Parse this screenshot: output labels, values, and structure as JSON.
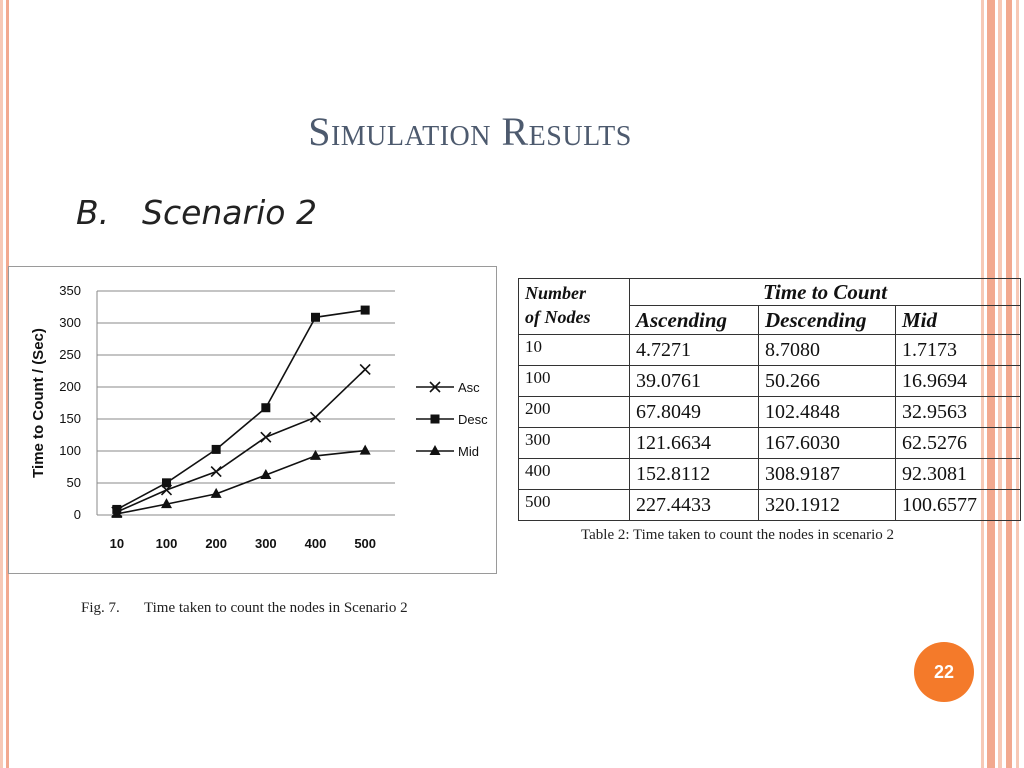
{
  "slide": {
    "title": "Simulation Results",
    "subtitle_num": "B.",
    "subtitle_text": "Scenario 2",
    "figure_caption_num": "Fig. 7.",
    "figure_caption_text": "Time taken to count the nodes in Scenario 2",
    "table_caption": "Table 2: Time taken to count the nodes in scenario 2",
    "page_number": "22"
  },
  "colors": {
    "accent": "#f47a2a",
    "title": "#4d5a6e",
    "stripe_light": "#f7c9b6",
    "stripe_dark": "#f2a98f"
  },
  "chart_data": {
    "type": "line",
    "title": "",
    "xlabel": "",
    "ylabel": "Time to Count / (Sec)",
    "categories": [
      "10",
      "100",
      "200",
      "300",
      "400",
      "500"
    ],
    "ylim": [
      0,
      350
    ],
    "yticks": [
      0,
      50,
      100,
      150,
      200,
      250,
      300,
      350
    ],
    "grid": true,
    "legend_position": "right",
    "series": [
      {
        "name": "Asc",
        "marker": "x",
        "values": [
          4.7271,
          39.0761,
          67.8049,
          121.6634,
          152.8112,
          227.4433
        ]
      },
      {
        "name": "Desc",
        "marker": "square",
        "values": [
          8.708,
          50.266,
          102.4848,
          167.603,
          308.9187,
          320.1912
        ]
      },
      {
        "name": "Mid",
        "marker": "triangle",
        "values": [
          1.7173,
          16.9694,
          32.9563,
          62.5276,
          92.3081,
          100.6577
        ]
      }
    ]
  },
  "table": {
    "col_header_nodes_1": "Number",
    "col_header_nodes_2": "of Nodes",
    "group_header": "Time to Count",
    "sub_headers": [
      "Ascending",
      "Descending",
      "Mid"
    ],
    "rows": [
      [
        "10",
        "4.7271",
        "8.7080",
        "1.7173"
      ],
      [
        "100",
        "39.0761",
        "50.266",
        "16.9694"
      ],
      [
        "200",
        "67.8049",
        "102.4848",
        "32.9563"
      ],
      [
        "300",
        "121.6634",
        "167.6030",
        "62.5276"
      ],
      [
        "400",
        "152.8112",
        "308.9187",
        "92.3081"
      ],
      [
        "500",
        "227.4433",
        "320.1912",
        "100.6577"
      ]
    ]
  }
}
